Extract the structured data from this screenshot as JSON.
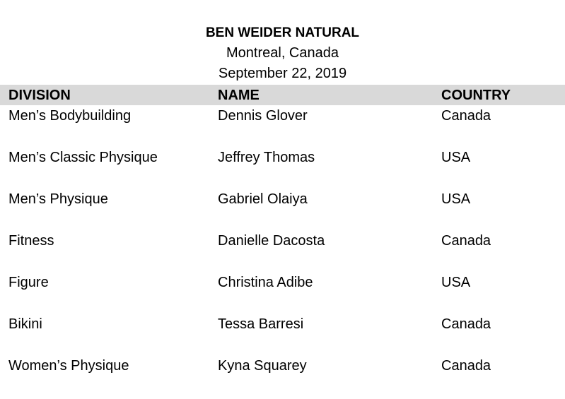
{
  "header": {
    "title": "BEN WEIDER NATURAL",
    "location": "Montreal, Canada",
    "date": "September 22, 2019"
  },
  "table": {
    "columns": [
      "DIVISION",
      "NAME",
      "COUNTRY"
    ],
    "rows": [
      {
        "division": "Men’s Bodybuilding",
        "name": "Dennis Glover",
        "country": "Canada"
      },
      {
        "division": "Men’s Classic Physique",
        "name": "Jeffrey Thomas",
        "country": "USA"
      },
      {
        "division": "Men’s Physique",
        "name": "Gabriel Olaiya",
        "country": "USA"
      },
      {
        "division": "Fitness",
        "name": "Danielle Dacosta",
        "country": "Canada"
      },
      {
        "division": "Figure",
        "name": "Christina Adibe",
        "country": "USA"
      },
      {
        "division": "Bikini",
        "name": "Tessa Barresi",
        "country": "Canada"
      },
      {
        "division": "Women’s Physique",
        "name": "Kyna Squarey",
        "country": "Canada"
      }
    ]
  },
  "colors": {
    "header_background": "#d9d9d9",
    "text": "#000000",
    "page_background": "#ffffff"
  }
}
